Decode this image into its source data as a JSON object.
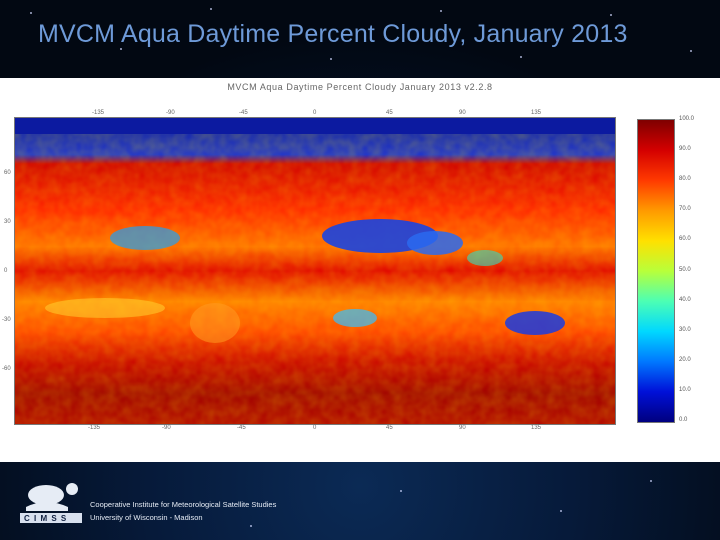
{
  "slide": {
    "title": "MVCM Aqua Daytime Percent Cloudy, January 2013"
  },
  "figure": {
    "title": "MVCM Aqua Daytime Percent Cloudy January 2013 v2.2.8",
    "lon_ticks_top": [
      "-135",
      "-90",
      "-45",
      "0",
      "45",
      "90",
      "135"
    ],
    "lon_ticks_bottom": [
      "-135",
      "-90",
      "-45",
      "0",
      "45",
      "90",
      "135"
    ],
    "lat_ticks": [
      "60",
      "30",
      "0",
      "-30",
      "-60"
    ],
    "colorbar_labels": [
      "100.0",
      "90.0",
      "80.0",
      "70.0",
      "60.0",
      "50.0",
      "40.0",
      "30.0",
      "20.0",
      "10.0",
      "0.0"
    ],
    "colorbar_colors": [
      "#7f0000",
      "#d40000",
      "#ff3a00",
      "#ff9a00",
      "#ffe000",
      "#b8ff3a",
      "#4cffb4",
      "#00d8ff",
      "#0078ff",
      "#0010d8",
      "#00007f"
    ]
  },
  "footer": {
    "logo_text": "C I M S S",
    "org_line1": "Cooperative Institute for Meteorological Satellite Studies",
    "org_line2": "University of Wisconsin - Madison"
  }
}
